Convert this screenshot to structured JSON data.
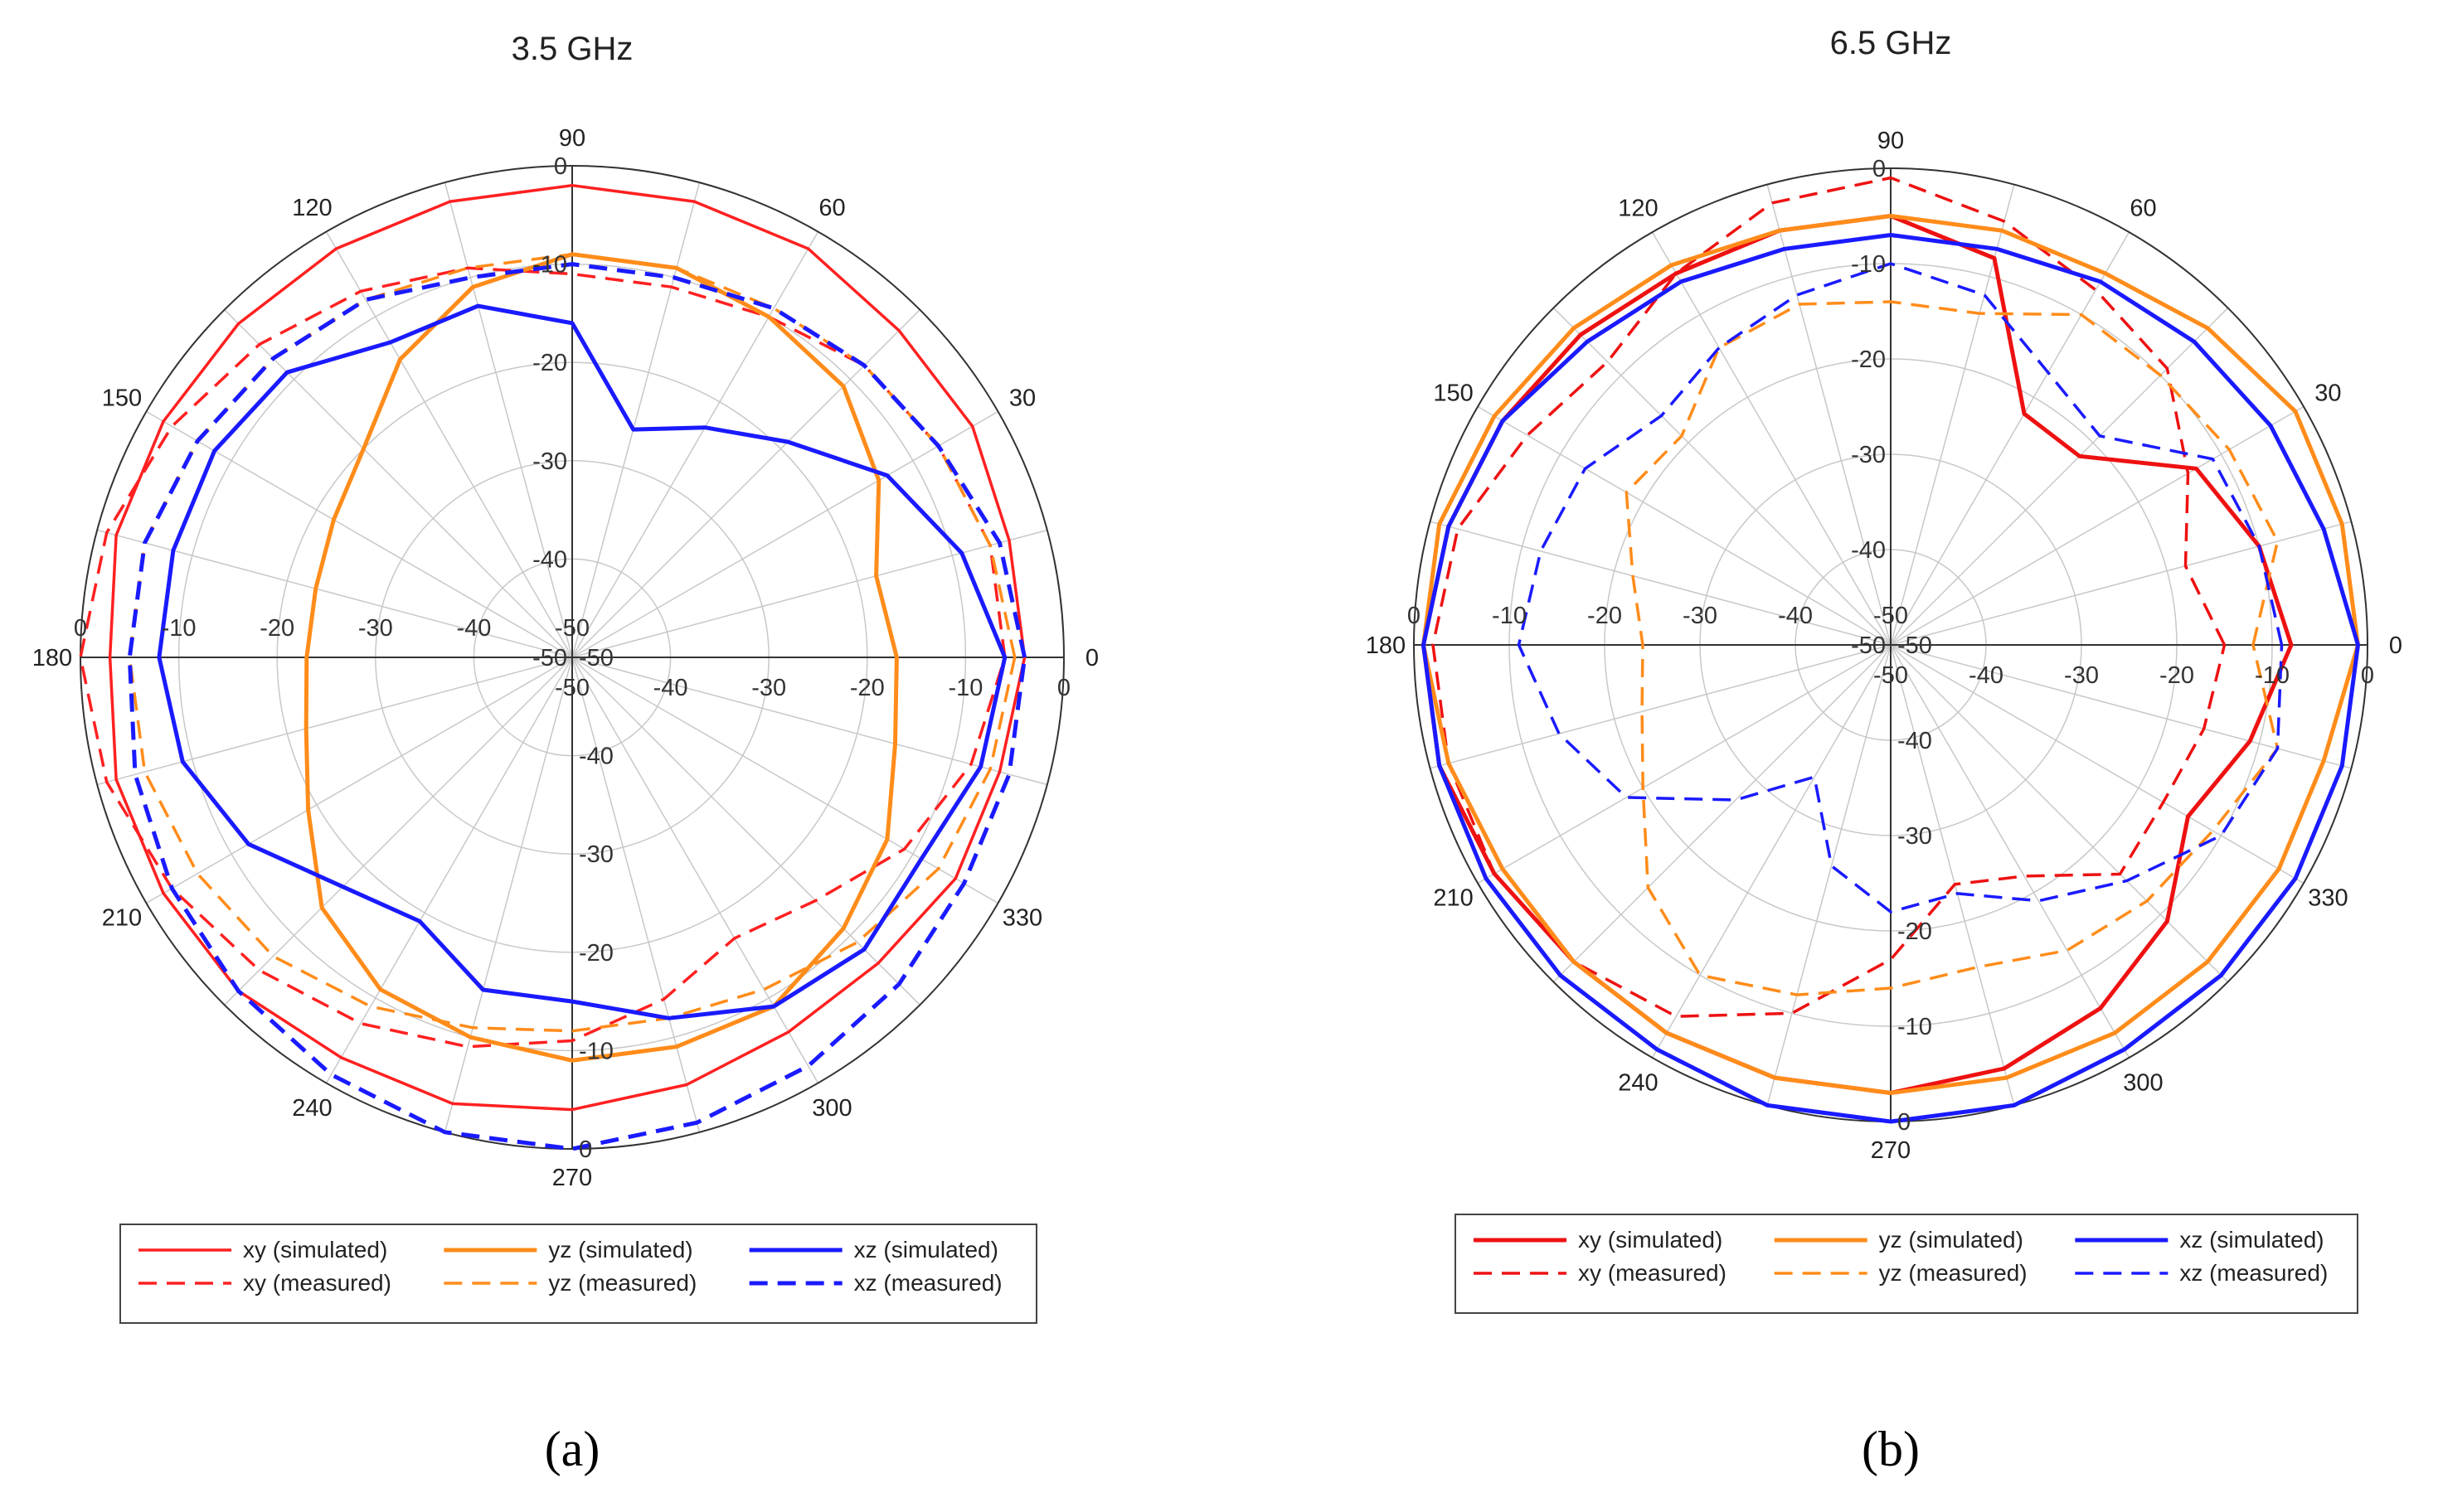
{
  "chart_data": [
    {
      "type": "polar-line",
      "title": "3.5 GHz",
      "panel_label": "(a)",
      "angle_ticks": [
        0,
        30,
        60,
        90,
        120,
        150,
        180,
        210,
        240,
        270,
        300,
        330
      ],
      "rlim": [
        -50,
        0
      ],
      "radial_ticks": [
        0,
        -10,
        -20,
        -30,
        -40,
        -50
      ],
      "grid": true,
      "legend_position": "bottom",
      "legend_columns": 3,
      "series": [
        {
          "name": "xy (simulated)",
          "color": "#ff2020",
          "dash": "solid",
          "width": "thin",
          "angles": [
            0,
            15,
            30,
            45,
            60,
            75,
            90,
            105,
            120,
            135,
            150,
            165,
            180,
            195,
            210,
            225,
            240,
            255,
            270,
            285,
            300,
            315,
            330,
            345
          ],
          "values": [
            -4,
            -4,
            -3,
            -3,
            -2,
            -2,
            -2,
            -2,
            -2,
            -2,
            -2,
            -2,
            -3,
            -2,
            -2,
            -2,
            -3,
            -3,
            -4,
            -5,
            -6,
            -6,
            -5,
            -5
          ]
        },
        {
          "name": "xy (measured)",
          "color": "#ff2020",
          "dash": "dashed",
          "width": "thin",
          "angles": [
            0,
            15,
            30,
            45,
            60,
            75,
            90,
            105,
            120,
            135,
            150,
            165,
            180,
            195,
            210,
            225,
            240,
            255,
            270,
            285,
            300,
            315,
            330,
            345
          ],
          "values": [
            -6,
            -6,
            -7,
            -8,
            -10,
            -11,
            -11,
            -9,
            -7,
            -5,
            -3,
            -1,
            0,
            -1,
            -3,
            -5,
            -7,
            -9,
            -11,
            -14,
            -17,
            -15,
            -11,
            -8
          ]
        },
        {
          "name": "yz (simulated)",
          "color": "#ff8c1a",
          "dash": "solid",
          "width": "thick",
          "angles": [
            0,
            15,
            30,
            45,
            60,
            75,
            90,
            105,
            120,
            135,
            150,
            165,
            180,
            195,
            210,
            225,
            240,
            255,
            270,
            285,
            300,
            315,
            330,
            345
          ],
          "values": [
            -17,
            -18,
            -14,
            -11,
            -10,
            -9,
            -9,
            -11,
            -15,
            -20,
            -22,
            -23,
            -23,
            -22,
            -19,
            -14,
            -11,
            -10,
            -9,
            -9,
            -9,
            -11,
            -13,
            -16
          ]
        },
        {
          "name": "yz (measured)",
          "color": "#ff8c1a",
          "dash": "dashed",
          "width": "thin",
          "angles": [
            0,
            15,
            30,
            45,
            60,
            75,
            90,
            105,
            120,
            135,
            150,
            165,
            180,
            195,
            210,
            225,
            240,
            255,
            270,
            285,
            300,
            315,
            330,
            345
          ],
          "values": [
            -5,
            -6,
            -7,
            -8,
            -9,
            -9,
            -9,
            -9,
            -8,
            -7,
            -6,
            -5,
            -5,
            -5,
            -6,
            -7,
            -9,
            -11,
            -12,
            -12,
            -11,
            -9,
            -7,
            -6
          ]
        },
        {
          "name": "xz (simulated)",
          "color": "#1a1aff",
          "dash": "solid",
          "width": "thick",
          "angles": [
            0,
            15,
            30,
            45,
            60,
            75,
            90,
            105,
            120,
            135,
            150,
            165,
            180,
            195,
            210,
            225,
            240,
            255,
            270,
            285,
            300,
            315,
            330,
            345
          ],
          "values": [
            -6,
            -9,
            -13,
            -19,
            -23,
            -26,
            -16,
            -13,
            -13,
            -9,
            -8,
            -8,
            -8,
            -9,
            -12,
            -17,
            -19,
            -15,
            -15,
            -12,
            -9,
            -8,
            -9,
            -7
          ]
        },
        {
          "name": "xz (measured)",
          "color": "#1a1aff",
          "dash": "dashed",
          "width": "thick",
          "angles": [
            0,
            15,
            30,
            45,
            60,
            75,
            90,
            105,
            120,
            135,
            150,
            165,
            180,
            195,
            210,
            225,
            240,
            255,
            270,
            285,
            300,
            315,
            330,
            345
          ],
          "values": [
            -4,
            -5,
            -7,
            -8,
            -9,
            -10,
            -10,
            -10,
            -8,
            -7,
            -6,
            -5,
            -5,
            -4,
            -3,
            -2,
            -1,
            0,
            0,
            -1,
            -2,
            -3,
            -4,
            -4
          ]
        }
      ]
    },
    {
      "type": "polar-line",
      "title": "6.5 GHz",
      "panel_label": "(b)",
      "angle_ticks": [
        0,
        30,
        60,
        90,
        120,
        150,
        180,
        210,
        240,
        270,
        300,
        330
      ],
      "rlim": [
        -50,
        0
      ],
      "radial_ticks": [
        0,
        -10,
        -20,
        -30,
        -40,
        -50
      ],
      "grid": true,
      "legend_position": "bottom",
      "legend_columns": 3,
      "series": [
        {
          "name": "xy (simulated)",
          "color": "#ee1111",
          "dash": "solid",
          "width": "thick",
          "angles": [
            0,
            15,
            30,
            45,
            60,
            75,
            90,
            105,
            120,
            135,
            150,
            165,
            180,
            195,
            210,
            225,
            240,
            255,
            270,
            285,
            300,
            315,
            330,
            345
          ],
          "values": [
            -8,
            -10,
            -13,
            -22,
            -22,
            -8,
            -5,
            -5,
            -5,
            -4,
            -3,
            -2,
            -1,
            -1,
            -2,
            -3,
            -3,
            -3,
            -3,
            -4,
            -6,
            -9,
            -14,
            -11
          ]
        },
        {
          "name": "xy (measured)",
          "color": "#ee1111",
          "dash": "dashed",
          "width": "thin",
          "angles": [
            0,
            15,
            30,
            45,
            60,
            75,
            90,
            105,
            120,
            135,
            150,
            165,
            180,
            195,
            210,
            225,
            240,
            255,
            270,
            285,
            300,
            315,
            330,
            345
          ],
          "values": [
            -15,
            -18,
            -14,
            -9,
            -7,
            -4,
            -1,
            -2,
            -5,
            -8,
            -6,
            -3,
            -2,
            -2,
            -2,
            -3,
            -5,
            -10,
            -17,
            -24,
            -22,
            -16,
            -17,
            -16
          ]
        },
        {
          "name": "yz (simulated)",
          "color": "#ff8c1a",
          "dash": "solid",
          "width": "thick",
          "angles": [
            0,
            15,
            30,
            45,
            60,
            75,
            90,
            105,
            120,
            135,
            150,
            165,
            180,
            195,
            210,
            225,
            240,
            255,
            270,
            285,
            300,
            315,
            330,
            345
          ],
          "values": [
            -1,
            -1,
            -1,
            -3,
            -5,
            -5,
            -5,
            -5,
            -4,
            -3,
            -2,
            -1,
            -1,
            -2,
            -3,
            -3,
            -3,
            -3,
            -3,
            -3,
            -3,
            -3,
            -3,
            -3
          ]
        },
        {
          "name": "yz (measured)",
          "color": "#ff8c1a",
          "dash": "dashed",
          "width": "thin",
          "angles": [
            0,
            15,
            30,
            45,
            60,
            75,
            90,
            105,
            120,
            135,
            150,
            165,
            180,
            195,
            210,
            225,
            240,
            255,
            270,
            285,
            300,
            315,
            330,
            345
          ],
          "values": [
            -12,
            -8,
            -9,
            -10,
            -10,
            -14,
            -14,
            -13,
            -14,
            -19,
            -18,
            -22,
            -24,
            -23,
            -20,
            -14,
            -10,
            -12,
            -14,
            -15,
            -13,
            -12,
            -11,
            -8
          ]
        },
        {
          "name": "xz (simulated)",
          "color": "#1a1aff",
          "dash": "solid",
          "width": "thick",
          "angles": [
            0,
            15,
            30,
            45,
            60,
            75,
            90,
            105,
            120,
            135,
            150,
            165,
            180,
            195,
            210,
            225,
            240,
            255,
            270,
            285,
            300,
            315,
            330,
            345
          ],
          "values": [
            -1,
            -3,
            -4,
            -5,
            -6,
            -7,
            -7,
            -7,
            -6,
            -5,
            -3,
            -2,
            -1,
            -1,
            -1,
            -1,
            -1,
            0,
            0,
            0,
            -1,
            -1,
            -1,
            -1
          ]
        },
        {
          "name": "xz (measured)",
          "color": "#1a1aff",
          "dash": "dashed",
          "width": "thin",
          "angles": [
            0,
            15,
            30,
            45,
            60,
            75,
            90,
            105,
            120,
            135,
            150,
            165,
            180,
            195,
            210,
            225,
            240,
            255,
            270,
            285,
            300,
            315,
            330,
            345
          ],
          "values": [
            -9,
            -10,
            -11,
            -19,
            -17,
            -12,
            -10,
            -12,
            -14,
            -16,
            -13,
            -12,
            -11,
            -14,
            -18,
            -27,
            -34,
            -26,
            -22,
            -23,
            -19,
            -15,
            -10,
            -8
          ]
        }
      ]
    }
  ]
}
